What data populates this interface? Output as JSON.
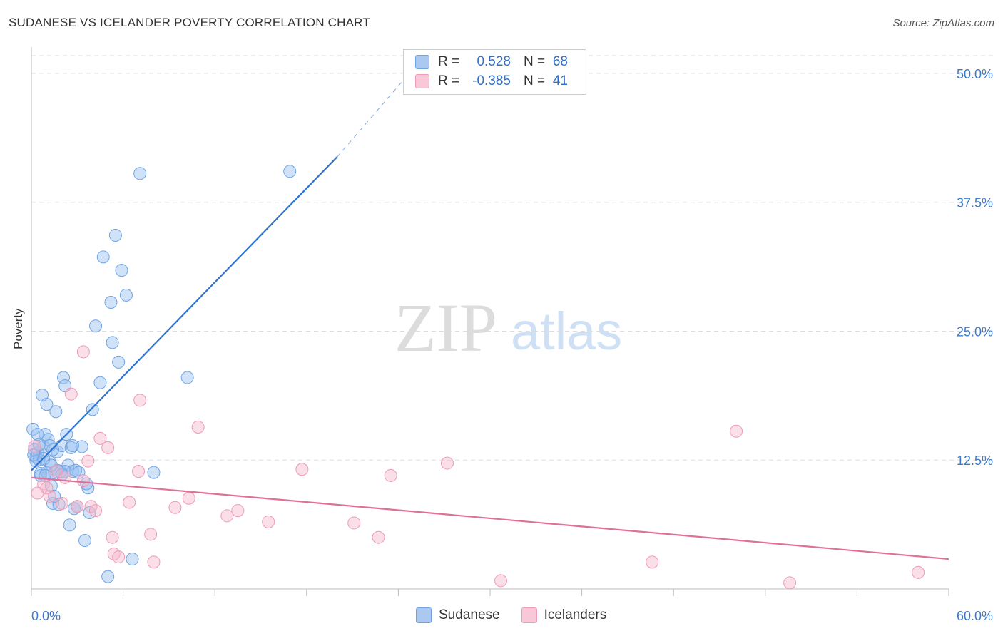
{
  "header": {
    "title": "SUDANESE VS ICELANDER POVERTY CORRELATION CHART",
    "source": "Source: ZipAtlas.com"
  },
  "watermark": {
    "part1": "ZIP",
    "part2": "atlas"
  },
  "legend": {
    "rows": [
      {
        "r_label": "R =",
        "r_value": "0.528",
        "n_label": "N =",
        "n_value": "68",
        "color": "#aac8f0"
      },
      {
        "r_label": "R =",
        "r_value": "-0.385",
        "n_label": "N =",
        "n_value": "41",
        "color": "#f7b8cc"
      }
    ]
  },
  "bottom_legend": {
    "series1": "Sudanese",
    "series2": "Icelanders"
  },
  "chart_data": {
    "type": "scatter",
    "title": "SUDANESE VS ICELANDER POVERTY CORRELATION CHART",
    "xlabel": "",
    "ylabel": "Poverty",
    "xlim": [
      0,
      60
    ],
    "ylim": [
      0,
      52
    ],
    "x_tick_labels": [
      "0.0%",
      "60.0%"
    ],
    "y_ticks": [
      12.5,
      25.0,
      37.5,
      50.0
    ],
    "y_tick_labels": [
      "12.5%",
      "25.0%",
      "37.5%",
      "50.0%"
    ],
    "grid": true,
    "legend_position": "top-center",
    "series": [
      {
        "name": "Sudanese",
        "color": "#7fb0ea",
        "line_color": "#2f74d0",
        "trend": {
          "x0": 0,
          "y0": 11.5,
          "x1": 20,
          "y1": 41.9,
          "dash_to_x": 25,
          "dash_to_y": 50.5
        },
        "points": [
          [
            0.1,
            15.5
          ],
          [
            0.2,
            13.5
          ],
          [
            0.3,
            12.8
          ],
          [
            0.4,
            13.2
          ],
          [
            0.5,
            12.5
          ],
          [
            0.6,
            11.0
          ],
          [
            0.7,
            18.8
          ],
          [
            0.8,
            13.8
          ],
          [
            0.9,
            15.0
          ],
          [
            1.0,
            17.9
          ],
          [
            1.1,
            14.5
          ],
          [
            1.2,
            12.3
          ],
          [
            1.3,
            10.0
          ],
          [
            1.4,
            8.3
          ],
          [
            1.5,
            11.3
          ],
          [
            1.6,
            17.2
          ],
          [
            1.7,
            13.3
          ],
          [
            1.8,
            8.2
          ],
          [
            1.9,
            11.4
          ],
          [
            2.0,
            13.9
          ],
          [
            2.1,
            20.5
          ],
          [
            2.2,
            19.7
          ],
          [
            2.3,
            15.0
          ],
          [
            2.4,
            12.0
          ],
          [
            2.5,
            6.2
          ],
          [
            2.6,
            13.7
          ],
          [
            2.7,
            11.4
          ],
          [
            2.8,
            7.8
          ],
          [
            2.9,
            11.5
          ],
          [
            3.0,
            8.0
          ],
          [
            3.1,
            11.3
          ],
          [
            3.3,
            13.8
          ],
          [
            3.5,
            4.7
          ],
          [
            3.7,
            9.8
          ],
          [
            3.8,
            7.4
          ],
          [
            4.0,
            17.4
          ],
          [
            4.2,
            25.5
          ],
          [
            4.5,
            20.0
          ],
          [
            4.7,
            32.2
          ],
          [
            5.0,
            1.2
          ],
          [
            5.2,
            27.8
          ],
          [
            5.3,
            23.9
          ],
          [
            5.5,
            34.3
          ],
          [
            5.7,
            22.0
          ],
          [
            5.9,
            30.9
          ],
          [
            6.2,
            28.5
          ],
          [
            6.6,
            2.9
          ],
          [
            7.1,
            40.3
          ],
          [
            8.0,
            11.3
          ],
          [
            10.2,
            20.5
          ],
          [
            16.9,
            40.5
          ],
          [
            0.3,
            12.4
          ],
          [
            0.6,
            11.2
          ],
          [
            1.0,
            11.3
          ],
          [
            0.15,
            13.0
          ],
          [
            1.4,
            13.5
          ],
          [
            2.2,
            11.4
          ],
          [
            0.9,
            11.0
          ],
          [
            1.7,
            11.5
          ],
          [
            1.2,
            13.9
          ],
          [
            0.4,
            15.0
          ],
          [
            2.0,
            11.1
          ],
          [
            3.6,
            10.2
          ],
          [
            0.8,
            12.6
          ],
          [
            1.5,
            9.0
          ],
          [
            2.7,
            13.9
          ],
          [
            0.5,
            14.0
          ],
          [
            1.3,
            12.0
          ]
        ]
      },
      {
        "name": "Icelanders",
        "color": "#f7b8cc",
        "line_color": "#e0709a",
        "trend": {
          "x0": 0,
          "y0": 10.8,
          "x1": 60,
          "y1": 2.9
        },
        "points": [
          [
            0.2,
            13.8
          ],
          [
            0.4,
            9.3
          ],
          [
            0.8,
            10.2
          ],
          [
            1.2,
            9.0
          ],
          [
            1.6,
            11.4
          ],
          [
            2.0,
            8.3
          ],
          [
            2.2,
            10.8
          ],
          [
            2.6,
            18.9
          ],
          [
            3.0,
            8.0
          ],
          [
            3.4,
            10.5
          ],
          [
            3.4,
            23.0
          ],
          [
            3.7,
            12.4
          ],
          [
            3.9,
            8.0
          ],
          [
            4.2,
            7.6
          ],
          [
            4.5,
            14.6
          ],
          [
            5.0,
            13.7
          ],
          [
            5.3,
            5.0
          ],
          [
            5.4,
            3.4
          ],
          [
            5.7,
            3.1
          ],
          [
            6.4,
            8.4
          ],
          [
            7.0,
            11.4
          ],
          [
            7.1,
            18.3
          ],
          [
            7.8,
            5.3
          ],
          [
            8.0,
            2.6
          ],
          [
            9.4,
            7.9
          ],
          [
            10.3,
            8.8
          ],
          [
            10.9,
            15.7
          ],
          [
            12.8,
            7.1
          ],
          [
            13.5,
            7.6
          ],
          [
            15.5,
            6.5
          ],
          [
            17.7,
            11.6
          ],
          [
            21.1,
            6.4
          ],
          [
            22.7,
            5.0
          ],
          [
            23.5,
            11.0
          ],
          [
            27.2,
            12.2
          ],
          [
            30.7,
            0.8
          ],
          [
            40.6,
            2.6
          ],
          [
            46.1,
            15.3
          ],
          [
            49.6,
            0.6
          ],
          [
            58.0,
            1.6
          ],
          [
            1.0,
            9.8
          ]
        ]
      }
    ]
  }
}
